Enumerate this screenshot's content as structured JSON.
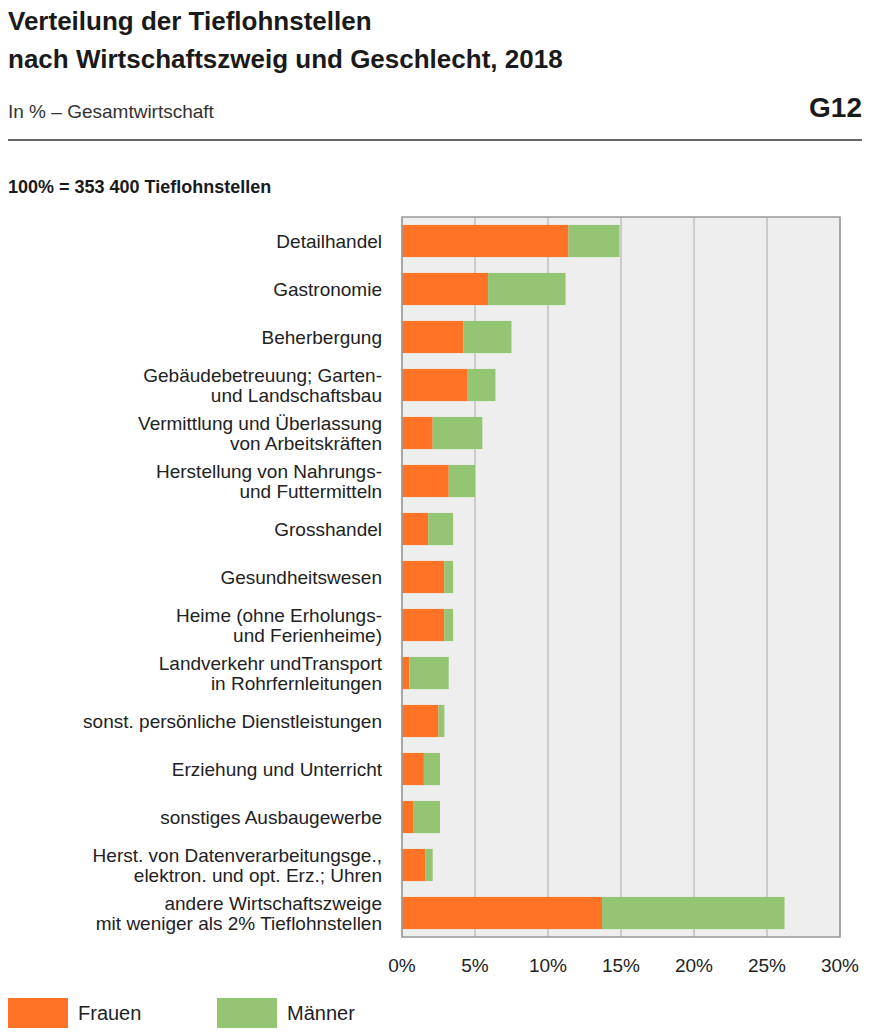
{
  "chart_data": {
    "type": "bar",
    "orientation": "horizontal",
    "stacked": true,
    "grid": true,
    "legend": "bottom-left",
    "title": "Verteilung der Tieflohnstellen\nnach Wirtschaftszweig und Geschlecht, 2018",
    "subtitle": "In % – Gesamtwirtschaft",
    "annotations": [
      "G12",
      "100% = 353 400 Tieflohnstellen"
    ],
    "categories": [
      "Detailhandel",
      "Gastronomie",
      "Beherbergung",
      "Gebäudebetreuung; Garten-\nund Landschaftsbau",
      "Vermittlung und Überlassung\nvon Arbeitskräften",
      "Herstellung von Nahrungs-\nund Futtermitteln",
      "Grosshandel",
      "Gesundheitswesen",
      "Heime (ohne Erholungs-\nund Ferienheime)",
      "Landverkehr undTransport\nin Rohrfernleitungen",
      "sonst. persönliche Dienstleistungen",
      "Erziehung und Unterricht",
      "sonstiges Ausbaugewerbe",
      "Herst. von Datenverarbeitungsge.,\nelektron. und opt. Erz.; Uhren",
      "andere Wirtschaftszweige\nmit weniger als 2% Tieflohnstellen"
    ],
    "series": [
      {
        "name": "Frauen",
        "color": "#ff7327",
        "values": [
          11.4,
          5.9,
          4.2,
          4.5,
          2.1,
          3.2,
          1.8,
          2.9,
          2.9,
          0.5,
          2.5,
          1.5,
          0.8,
          1.6,
          13.7
        ]
      },
      {
        "name": "Männer",
        "color": "#93c572",
        "values": [
          3.5,
          5.3,
          3.3,
          1.9,
          3.4,
          1.8,
          1.7,
          0.6,
          0.6,
          2.7,
          0.4,
          1.1,
          1.8,
          0.5,
          12.5
        ]
      }
    ],
    "xlim": [
      0,
      30
    ],
    "xticks": [
      {
        "value": 0,
        "label": "0%"
      },
      {
        "value": 5,
        "label": "5%"
      },
      {
        "value": 10,
        "label": "10%"
      },
      {
        "value": 15,
        "label": "15%"
      },
      {
        "value": 20,
        "label": "20%"
      },
      {
        "value": 25,
        "label": "25%"
      },
      {
        "value": 30,
        "label": "30%"
      }
    ]
  }
}
